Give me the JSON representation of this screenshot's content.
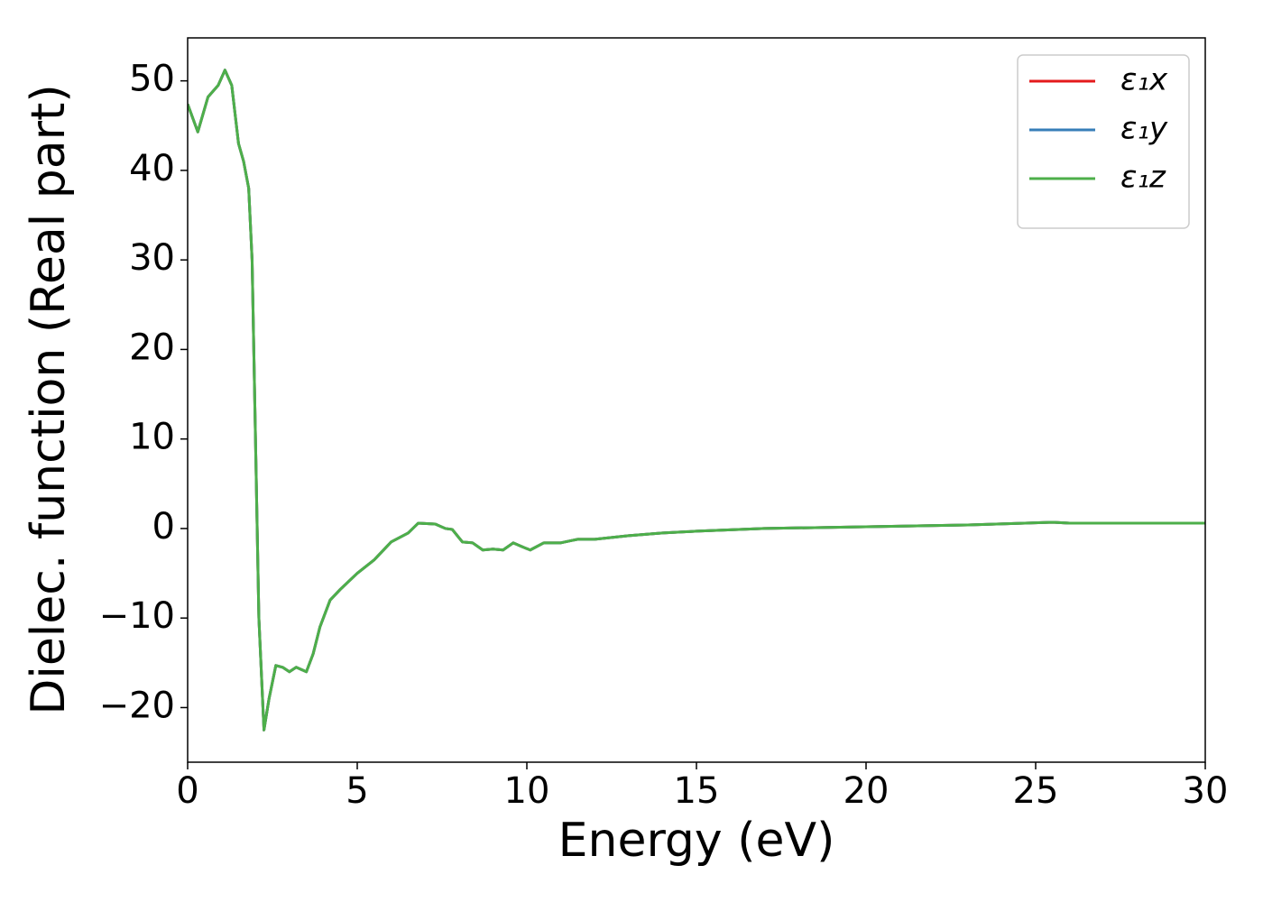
{
  "chart_data": {
    "type": "line",
    "xlabel": "Energy (eV)",
    "ylabel": "Dielec. function (Real part)",
    "x": [
      0,
      0.3,
      0.6,
      0.9,
      1.1,
      1.3,
      1.5,
      1.65,
      1.8,
      1.9,
      2.0,
      2.1,
      2.25,
      2.4,
      2.6,
      2.8,
      3.0,
      3.2,
      3.5,
      3.7,
      3.9,
      4.2,
      4.5,
      5.0,
      5.5,
      6.0,
      6.5,
      6.8,
      7.3,
      7.6,
      7.8,
      8.1,
      8.4,
      8.7,
      9.0,
      9.3,
      9.6,
      9.9,
      10.1,
      10.5,
      11,
      11.5,
      12,
      13,
      14,
      15,
      17,
      20,
      23,
      25.5,
      26,
      30
    ],
    "series": [
      {
        "name": "ε₁x",
        "color": "#e41a1c",
        "values": [
          47.4,
          44.3,
          48.2,
          49.5,
          51.2,
          49.5,
          43,
          41,
          38,
          30,
          10,
          -10,
          -22.5,
          -19,
          -15.3,
          -15.5,
          -16,
          -15.5,
          -16,
          -14,
          -11,
          -8,
          -6.8,
          -5,
          -3.5,
          -1.5,
          -0.5,
          0.6,
          0.5,
          0,
          -0.1,
          -1.5,
          -1.6,
          -2.4,
          -2.3,
          -2.4,
          -1.6,
          -2.1,
          -2.4,
          -1.6,
          -1.6,
          -1.2,
          -1.2,
          -0.8,
          -0.5,
          -0.3,
          0,
          0.2,
          0.4,
          0.7,
          0.6,
          0.6
        ]
      },
      {
        "name": "ε₁y",
        "color": "#377eb8",
        "values": [
          47.4,
          44.3,
          48.2,
          49.5,
          51.2,
          49.5,
          43,
          41,
          38,
          30,
          10,
          -10,
          -22.5,
          -19,
          -15.3,
          -15.5,
          -16,
          -15.5,
          -16,
          -14,
          -11,
          -8,
          -6.8,
          -5,
          -3.5,
          -1.5,
          -0.5,
          0.6,
          0.5,
          0,
          -0.1,
          -1.5,
          -1.6,
          -2.4,
          -2.3,
          -2.4,
          -1.6,
          -2.1,
          -2.4,
          -1.6,
          -1.6,
          -1.2,
          -1.2,
          -0.8,
          -0.5,
          -0.3,
          0,
          0.2,
          0.4,
          0.7,
          0.6,
          0.6
        ]
      },
      {
        "name": "ε₁z",
        "color": "#4daf4a",
        "values": [
          47.4,
          44.3,
          48.2,
          49.5,
          51.2,
          49.5,
          43,
          41,
          38,
          30,
          10,
          -10,
          -22.5,
          -19,
          -15.3,
          -15.5,
          -16,
          -15.5,
          -16,
          -14,
          -11,
          -8,
          -6.8,
          -5,
          -3.5,
          -1.5,
          -0.5,
          0.6,
          0.5,
          0,
          -0.1,
          -1.5,
          -1.6,
          -2.4,
          -2.3,
          -2.4,
          -1.6,
          -2.1,
          -2.4,
          -1.6,
          -1.6,
          -1.2,
          -1.2,
          -0.8,
          -0.5,
          -0.3,
          0,
          0.2,
          0.4,
          0.7,
          0.6,
          0.6
        ]
      }
    ],
    "xlim": [
      0,
      30
    ],
    "xticks": [
      0,
      5,
      10,
      15,
      20,
      25,
      30
    ],
    "ylim": [
      -26.1,
      54.8
    ],
    "yticks": [
      {
        "value": -20,
        "label": "−20"
      },
      {
        "value": -10,
        "label": "−10"
      },
      0,
      10,
      20,
      30,
      40,
      50
    ],
    "legend": "upper right",
    "grid": false
  }
}
